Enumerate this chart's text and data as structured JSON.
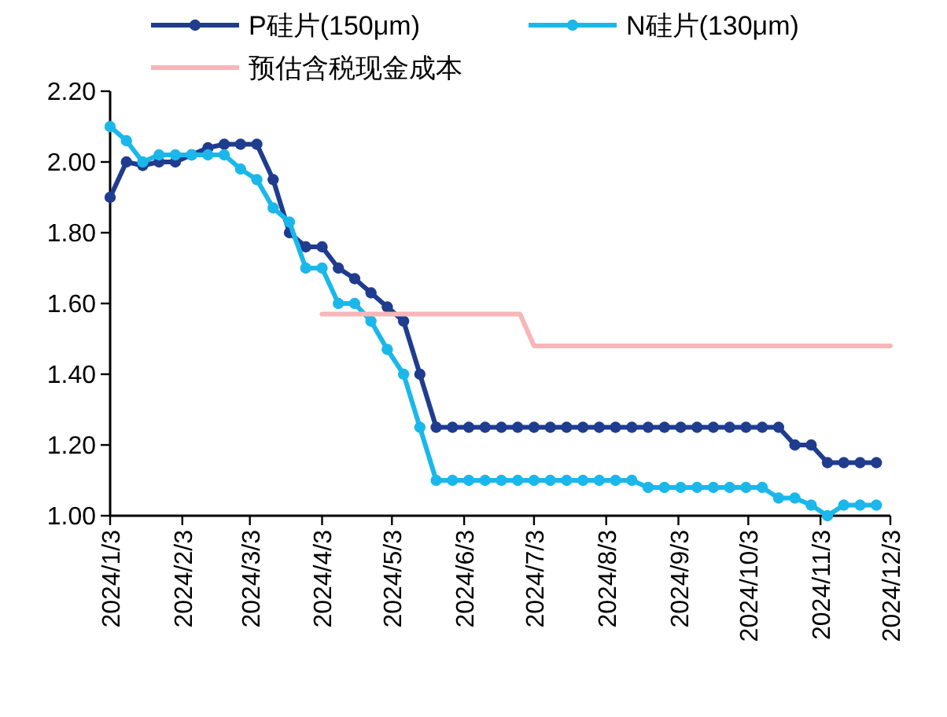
{
  "chart_data": {
    "type": "line",
    "x": [
      "2024-01-03",
      "2024-01-10",
      "2024-01-17",
      "2024-01-24",
      "2024-01-31",
      "2024-02-07",
      "2024-02-14",
      "2024-02-21",
      "2024-02-28",
      "2024-03-06",
      "2024-03-13",
      "2024-03-20",
      "2024-03-27",
      "2024-04-03",
      "2024-04-10",
      "2024-04-17",
      "2024-04-24",
      "2024-05-01",
      "2024-05-08",
      "2024-05-15",
      "2024-05-22",
      "2024-05-29",
      "2024-06-05",
      "2024-06-12",
      "2024-06-19",
      "2024-06-26",
      "2024-07-03",
      "2024-07-10",
      "2024-07-17",
      "2024-07-24",
      "2024-07-31",
      "2024-08-07",
      "2024-08-14",
      "2024-08-21",
      "2024-08-28",
      "2024-09-04",
      "2024-09-11",
      "2024-09-18",
      "2024-09-25",
      "2024-10-02",
      "2024-10-09",
      "2024-10-16",
      "2024-10-23",
      "2024-10-30",
      "2024-11-06",
      "2024-11-13",
      "2024-11-20",
      "2024-11-27"
    ],
    "series": [
      {
        "name": "P硅片(150μm)",
        "color": "#1f3c8f",
        "marker": "circle",
        "values": [
          1.9,
          2.0,
          1.99,
          2.0,
          2.0,
          2.02,
          2.04,
          2.05,
          2.05,
          2.05,
          1.95,
          1.8,
          1.76,
          1.76,
          1.7,
          1.67,
          1.63,
          1.59,
          1.55,
          1.4,
          1.25,
          1.25,
          1.25,
          1.25,
          1.25,
          1.25,
          1.25,
          1.25,
          1.25,
          1.25,
          1.25,
          1.25,
          1.25,
          1.25,
          1.25,
          1.25,
          1.25,
          1.25,
          1.25,
          1.25,
          1.25,
          1.25,
          1.2,
          1.2,
          1.15,
          1.15,
          1.15,
          1.15
        ]
      },
      {
        "name": "N硅片(130μm)",
        "color": "#1ab8ea",
        "marker": "circle",
        "values": [
          2.1,
          2.06,
          2.0,
          2.02,
          2.02,
          2.02,
          2.02,
          2.02,
          1.98,
          1.95,
          1.87,
          1.83,
          1.7,
          1.7,
          1.6,
          1.6,
          1.55,
          1.47,
          1.4,
          1.25,
          1.1,
          1.1,
          1.1,
          1.1,
          1.1,
          1.1,
          1.1,
          1.1,
          1.1,
          1.1,
          1.1,
          1.1,
          1.1,
          1.08,
          1.08,
          1.08,
          1.08,
          1.08,
          1.08,
          1.08,
          1.08,
          1.05,
          1.05,
          1.03,
          1.0,
          1.03,
          1.03,
          1.03
        ]
      },
      {
        "name": "预估含税现金成本",
        "color": "#f7b6b8",
        "marker": "none",
        "x": [
          "2024-04-03",
          "2024-06-27",
          "2024-07-03",
          "2024-12-03"
        ],
        "values": [
          1.57,
          1.57,
          1.48,
          1.48
        ]
      }
    ],
    "xlim": [
      "2024-01-03",
      "2024-12-03"
    ],
    "xticks": [
      {
        "value": "2024-01-03",
        "label": "2024/1/3"
      },
      {
        "value": "2024-02-03",
        "label": "2024/2/3"
      },
      {
        "value": "2024-03-03",
        "label": "2024/3/3"
      },
      {
        "value": "2024-04-03",
        "label": "2024/4/3"
      },
      {
        "value": "2024-05-03",
        "label": "2024/5/3"
      },
      {
        "value": "2024-06-03",
        "label": "2024/6/3"
      },
      {
        "value": "2024-07-03",
        "label": "2024/7/3"
      },
      {
        "value": "2024-08-03",
        "label": "2024/8/3"
      },
      {
        "value": "2024-09-03",
        "label": "2024/9/3"
      },
      {
        "value": "2024-10-03",
        "label": "2024/10/3"
      },
      {
        "value": "2024-11-03",
        "label": "2024/11/3"
      },
      {
        "value": "2024-12-03",
        "label": "2024/12/3"
      }
    ],
    "ylim": [
      1.0,
      2.2
    ],
    "yticks": [
      {
        "value": 1.0,
        "label": "1.00"
      },
      {
        "value": 1.2,
        "label": "1.20"
      },
      {
        "value": 1.4,
        "label": "1.40"
      },
      {
        "value": 1.6,
        "label": "1.60"
      },
      {
        "value": 1.8,
        "label": "1.80"
      },
      {
        "value": 2.0,
        "label": "2.00"
      },
      {
        "value": 2.2,
        "label": "2.20"
      }
    ],
    "legend": "top",
    "line_style": "solid"
  }
}
